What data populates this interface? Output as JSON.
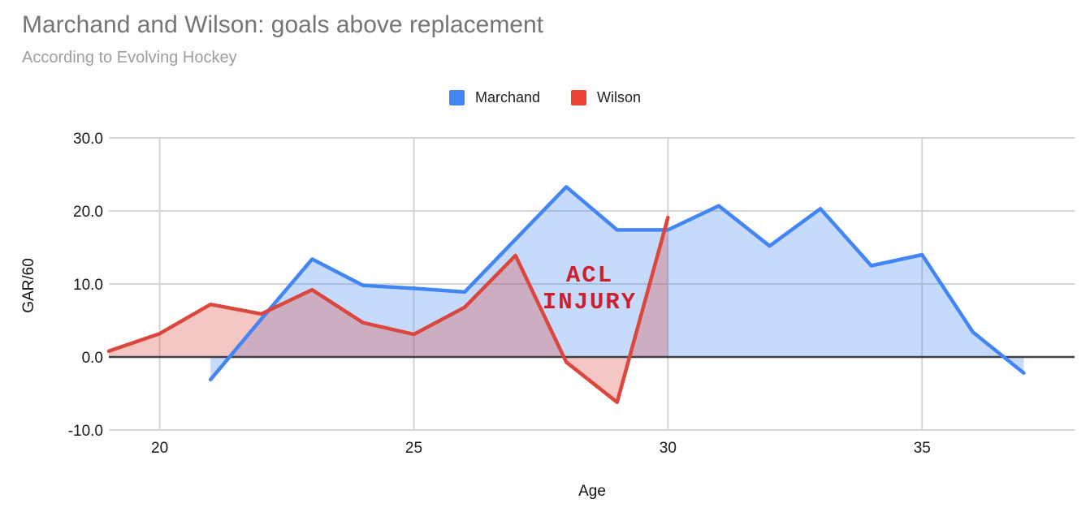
{
  "header": {
    "title": "Marchand and Wilson: goals above replacement",
    "subtitle": "According to Evolving Hockey"
  },
  "legend": {
    "items": [
      {
        "label": "Marchand",
        "color": "#4285f4"
      },
      {
        "label": "Wilson",
        "color": "#ea4335"
      }
    ]
  },
  "annotation": {
    "line1": "ACL",
    "line2": "INJURY",
    "color": "#cc202e"
  },
  "axes": {
    "y_title": "GAR/60",
    "x_title": "Age",
    "y_ticks": [
      {
        "label": "30.0",
        "value": 30
      },
      {
        "label": "20.0",
        "value": 20
      },
      {
        "label": "10.0",
        "value": 10
      },
      {
        "label": "0.0",
        "value": 0
      },
      {
        "label": "-10.0",
        "value": -10
      }
    ],
    "x_ticks": [
      {
        "label": "20",
        "value": 20
      },
      {
        "label": "25",
        "value": 25
      },
      {
        "label": "30",
        "value": 30
      },
      {
        "label": "35",
        "value": 35
      }
    ]
  },
  "colors": {
    "marchand_line": "#4285f4",
    "wilson_line": "#db473d",
    "fill_opacity": 0.3,
    "gridline": "#d5d5d5",
    "zero_line": "#3c4043",
    "title": "#757575",
    "subtitle": "#9e9e9e",
    "annotation": "#cc202e"
  },
  "chart_data": {
    "type": "area",
    "title": "Marchand and Wilson: goals above replacement",
    "subtitle": "According to Evolving Hockey",
    "xlabel": "Age",
    "ylabel": "GAR/60",
    "xlim": [
      19,
      38
    ],
    "ylim": [
      -10,
      30
    ],
    "baseline": 0,
    "grid": true,
    "legend_position": "top",
    "series": [
      {
        "name": "Marchand",
        "color": "#4285f4",
        "x": [
          21,
          22,
          23,
          24,
          25,
          26,
          27,
          28,
          29,
          30,
          31,
          32,
          33,
          34,
          35,
          36,
          37
        ],
        "y": [
          -3.1,
          5.2,
          13.4,
          9.8,
          9.4,
          8.9,
          16.1,
          23.3,
          17.4,
          17.4,
          20.7,
          15.2,
          20.3,
          12.5,
          14.0,
          3.4,
          -2.2
        ]
      },
      {
        "name": "Wilson",
        "color": "#db473d",
        "x": [
          19,
          20,
          21,
          22,
          23,
          24,
          25,
          26,
          27,
          28,
          29,
          30
        ],
        "y": [
          0.8,
          3.2,
          7.2,
          5.9,
          9.2,
          4.7,
          3.1,
          6.8,
          13.9,
          -0.7,
          -6.2,
          19.1
        ]
      }
    ],
    "annotation": {
      "text": "ACL INJURY",
      "x": 27.6,
      "y": 10.5
    }
  }
}
